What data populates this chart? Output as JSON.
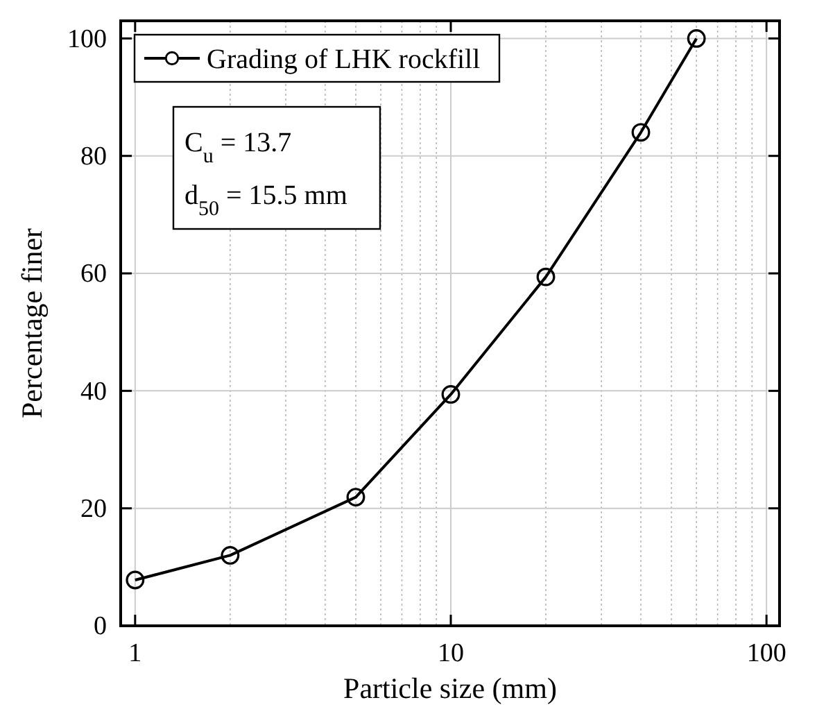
{
  "chart_data": {
    "type": "line",
    "xlabel": "Particle size (mm)",
    "ylabel": "Percentage finer",
    "x": [
      1,
      2,
      5,
      10,
      20,
      40,
      60
    ],
    "series": [
      {
        "name": "Grading of LHK rockfill",
        "color": "#000000",
        "values": [
          7.8,
          12,
          21.9,
          39.4,
          59.4,
          84,
          100
        ]
      }
    ],
    "log": "x",
    "xlim": [
      0.9,
      110
    ],
    "ylim": [
      0,
      103
    ],
    "xticks": [
      1,
      10,
      100
    ],
    "yticks": [
      0,
      20,
      40,
      60,
      80,
      100
    ],
    "grid": true,
    "legend": "top left",
    "marker": "circle",
    "line_style": "solid",
    "annotations": [
      "C$_{u}$ = 13.7",
      "d$_{50}$ = 15.5 mm"
    ]
  }
}
